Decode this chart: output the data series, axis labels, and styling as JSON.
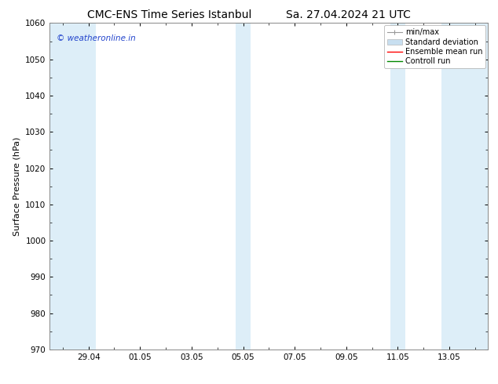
{
  "title_left": "CMC-ENS Time Series Istanbul",
  "title_right": "Sa. 27.04.2024 21 UTC",
  "ylabel": "Surface Pressure (hPa)",
  "ylim": [
    970,
    1060
  ],
  "yticks": [
    970,
    980,
    990,
    1000,
    1010,
    1020,
    1030,
    1040,
    1050,
    1060
  ],
  "xlim_start": -0.5,
  "xlim_end": 16.5,
  "xtick_labels": [
    "29.04",
    "01.05",
    "03.05",
    "05.05",
    "07.05",
    "09.05",
    "11.05",
    "13.05"
  ],
  "xtick_positions": [
    1,
    3,
    5,
    7,
    9,
    11,
    13,
    15
  ],
  "shaded_bands": [
    {
      "xmin": -0.5,
      "xmax": 1.3
    },
    {
      "xmin": 6.7,
      "xmax": 7.3
    },
    {
      "xmin": 12.7,
      "xmax": 13.3
    },
    {
      "xmin": 14.7,
      "xmax": 16.5
    }
  ],
  "band_color": "#ddeef8",
  "bg_color": "#ffffff",
  "watermark_text": "© weatheronline.in",
  "watermark_color": "#2244cc",
  "legend_labels": [
    "min/max",
    "Standard deviation",
    "Ensemble mean run",
    "Controll run"
  ],
  "legend_colors": [
    "#999999",
    "#c8dff0",
    "#ff0000",
    "#008800"
  ],
  "title_fontsize": 10,
  "label_fontsize": 8,
  "tick_fontsize": 7.5,
  "legend_fontsize": 7,
  "border_color": "#888888"
}
